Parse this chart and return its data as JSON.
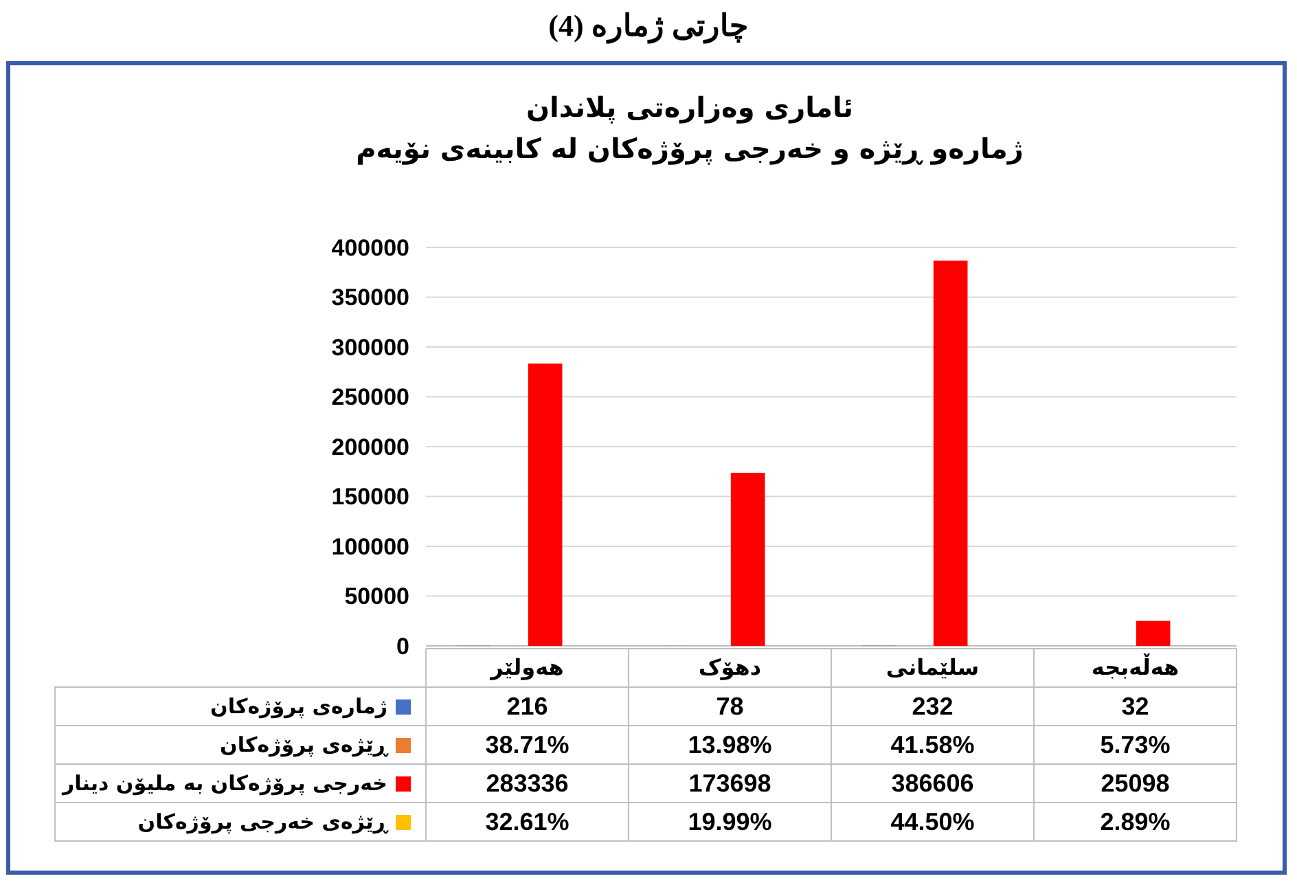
{
  "chart_data": {
    "type": "bar",
    "title": "چارتی ژمارە (4)",
    "subtitle": "ئاماری وەزارەتی پلاندان\nژمارەو ڕێژە و خەرجی پرۆژەکان لە کابینەی نۆیەم",
    "categories": [
      "هەولێر",
      "دهۆک",
      "سلێمانی",
      "هەڵەبجە"
    ],
    "series": [
      {
        "name": "ژمارەی پرۆژەکان",
        "color": "#4472c4",
        "values": [
          216,
          78,
          232,
          32
        ],
        "value_labels": [
          "216",
          "78",
          "232",
          "32"
        ]
      },
      {
        "name": "ڕێژەی پرۆژەکان",
        "color": "#ed7d31",
        "values": [
          38.71,
          13.98,
          41.58,
          5.73
        ],
        "value_labels": [
          "38.71%",
          "13.98%",
          "41.58%",
          "5.73%"
        ]
      },
      {
        "name": "خەرجی پرۆژەکان بە ملیۆن دینار",
        "color": "#ff0000",
        "values": [
          283336,
          173698,
          386606,
          25098
        ],
        "value_labels": [
          "283336",
          "173698",
          "386606",
          "25098"
        ]
      },
      {
        "name": "ڕێژەی خەرجی پرۆژەکان",
        "color": "#ffc000",
        "values": [
          32.61,
          19.99,
          44.5,
          2.89
        ],
        "value_labels": [
          "32.61%",
          "19.99%",
          "44.50%",
          "2.89%"
        ]
      }
    ],
    "ylim": [
      0,
      400000
    ],
    "yticks": [
      0,
      50000,
      100000,
      150000,
      200000,
      250000,
      300000,
      350000,
      400000
    ],
    "grid": "y",
    "legend": "bottom"
  }
}
